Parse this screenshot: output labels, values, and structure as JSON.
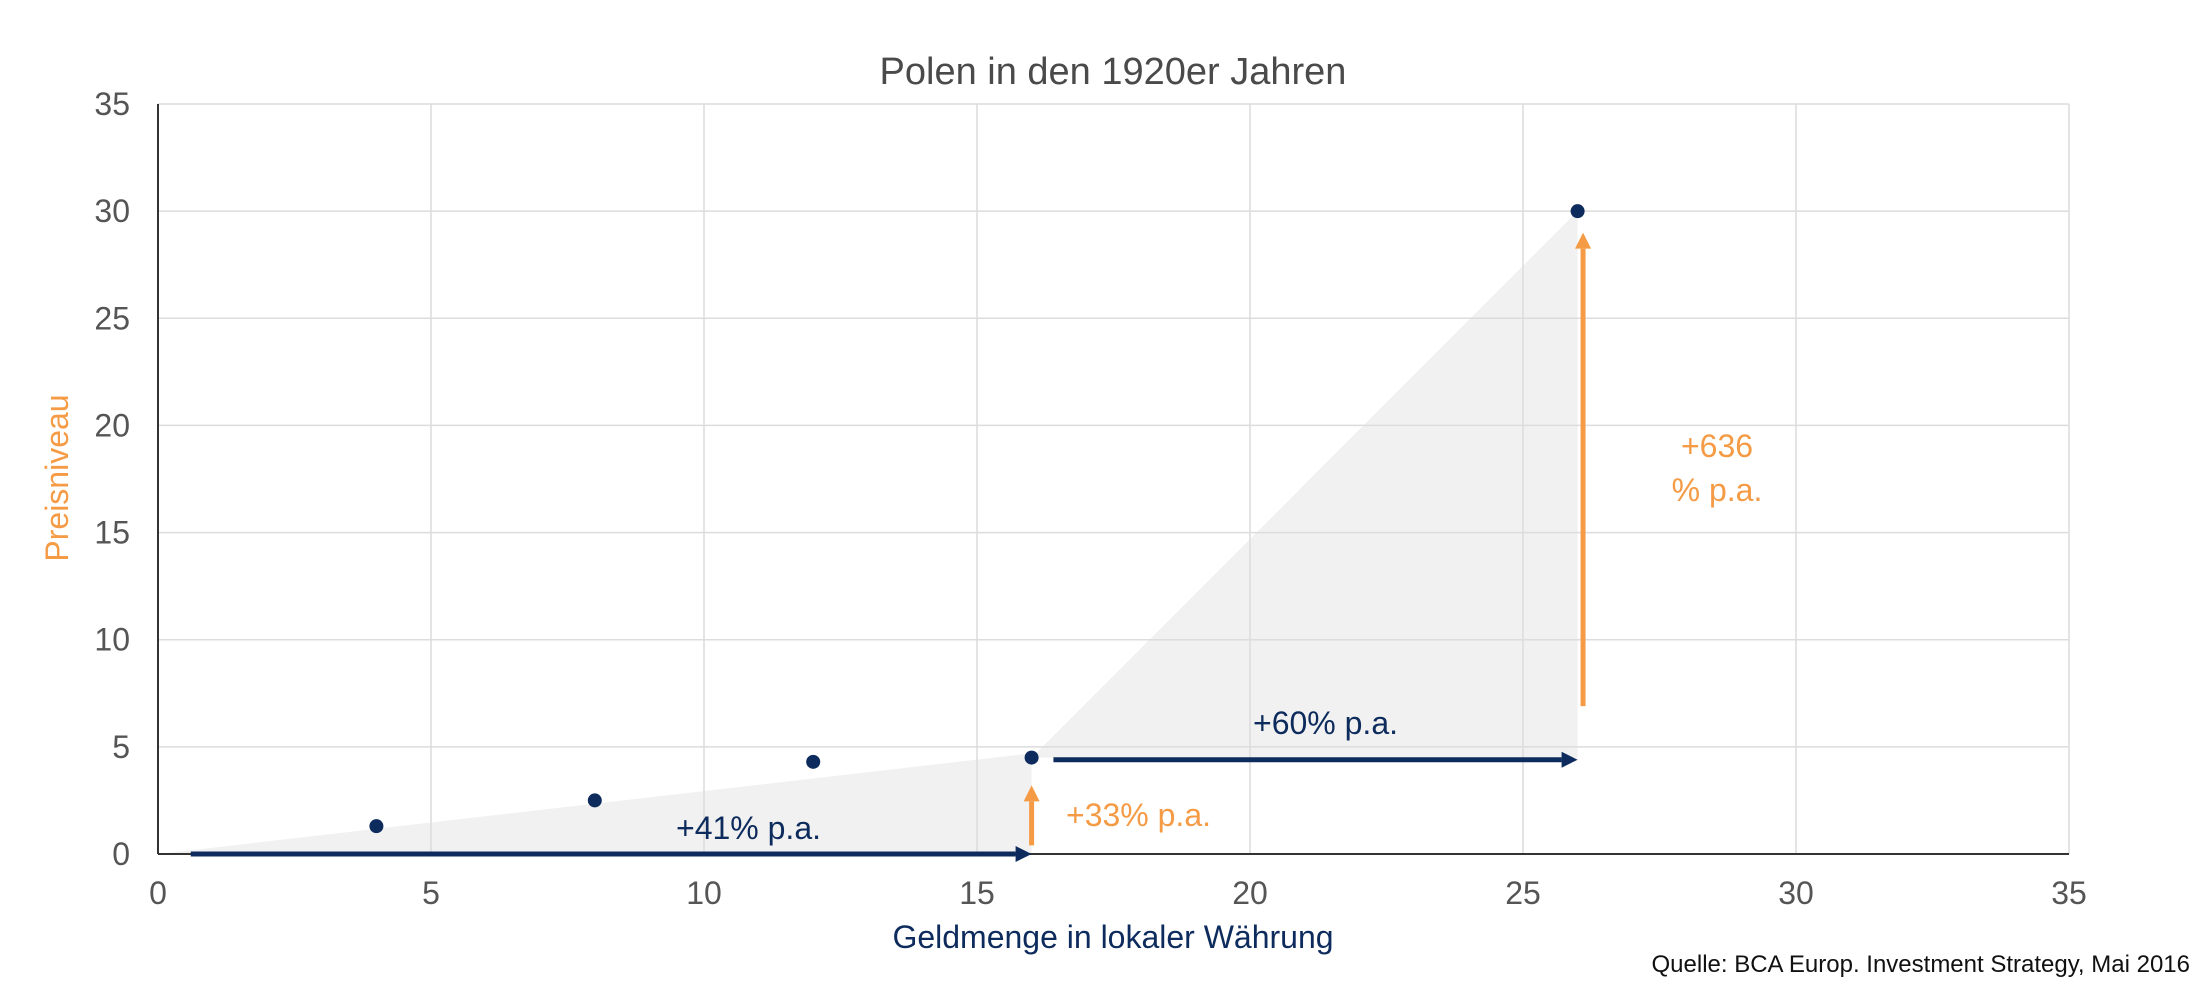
{
  "chart_data": {
    "type": "scatter",
    "title": "Polen in den 1920er Jahren",
    "xlabel": "Geldmenge in lokaler Währung",
    "ylabel": "Preisniveau",
    "xlim": [
      0,
      35
    ],
    "ylim": [
      0,
      35
    ],
    "x_ticks": [
      "0",
      "5",
      "10",
      "15",
      "20",
      "25",
      "30",
      "35"
    ],
    "y_ticks": [
      "0",
      "5",
      "10",
      "15",
      "20",
      "25",
      "30",
      "35"
    ],
    "grid": true,
    "points": [
      {
        "x": 4,
        "y": 1.3
      },
      {
        "x": 8,
        "y": 2.5
      },
      {
        "x": 12,
        "y": 4.3
      },
      {
        "x": 16,
        "y": 4.5
      },
      {
        "x": 26,
        "y": 30
      }
    ],
    "shaded_triangles": [
      [
        [
          0,
          0
        ],
        [
          16,
          0
        ],
        [
          16,
          4.7
        ]
      ],
      [
        [
          16,
          4.5
        ],
        [
          26,
          4.5
        ],
        [
          26,
          30
        ]
      ]
    ],
    "arrows": [
      {
        "from": [
          0.6,
          0
        ],
        "to": [
          16,
          0
        ],
        "color": "#0d2b5c",
        "label": "+41% p.a."
      },
      {
        "from": [
          16,
          0.4
        ],
        "to": [
          16,
          3.2
        ],
        "color": "#f59b45",
        "label": "+33% p.a."
      },
      {
        "from": [
          16.4,
          4.4
        ],
        "to": [
          26,
          4.4
        ],
        "color": "#0d2b5c",
        "label": "+60% p.a."
      },
      {
        "from": [
          26.1,
          6.9
        ],
        "to": [
          26.1,
          29
        ],
        "color": "#f59b45",
        "label": "+636\n% p.a."
      }
    ],
    "source": "Quelle: BCA Europ. Investment Strategy, Mai 2016"
  },
  "colors": {
    "navy": "#0d2b5c",
    "orange": "#f59b45",
    "grid": "#dcdcdc",
    "shade": "#f1f1f1",
    "title": "#4a4a4a"
  }
}
